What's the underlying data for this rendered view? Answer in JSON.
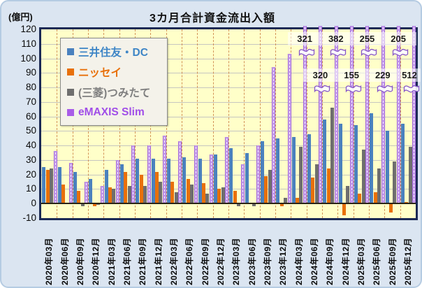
{
  "chart_data": {
    "type": "bar",
    "title": "3カ月合計資金流出入額",
    "unit_label": "(億円)",
    "ylim": [
      -10,
      120
    ],
    "ytick_step": 10,
    "grid": true,
    "legend_position": "top-left",
    "categories": [
      "2020年03月",
      "2020年06月",
      "2020年09月",
      "2020年12月",
      "2021年03月",
      "2021年06月",
      "2021年09月",
      "2021年12月",
      "2022年03月",
      "2022年06月",
      "2022年09月",
      "2022年12月",
      "2023年03月",
      "2023年06月",
      "2023年09月",
      "2023年12月",
      "2024年03月",
      "2024年06月",
      "2024年09月",
      "2024年12月",
      "2025年03月",
      "2025年06月",
      "2025年09月",
      "2025年12月"
    ],
    "series": [
      {
        "name": "三井住友・DC",
        "color": "#4a81be",
        "text_color": "#3d85c6",
        "values": [
          25,
          25,
          22,
          17,
          23,
          27,
          31,
          31,
          31,
          32,
          31,
          34,
          38,
          35,
          43,
          45,
          46,
          48,
          58,
          55,
          54,
          62,
          50,
          55
        ]
      },
      {
        "name": "ニッセイ",
        "color": "#e8700a",
        "text_color": "#e8700a",
        "values": [
          23,
          13,
          9,
          -2,
          11,
          22,
          20,
          22,
          15,
          17,
          14,
          10,
          9,
          0,
          19,
          -2,
          4,
          18,
          24,
          -8,
          7,
          8,
          -6,
          1
        ]
      },
      {
        "name": "(三菱)つみたて",
        "color": "#6e6e6e",
        "text_color": "#7f7f7f",
        "values": [
          24,
          0,
          -2,
          -1,
          10,
          12,
          12,
          15,
          8,
          13,
          7,
          11,
          -2,
          -2,
          23,
          4,
          39,
          27,
          66,
          12,
          37,
          24,
          29,
          39
        ]
      },
      {
        "name": "eMAXIS Slim",
        "color": "#a95ce8",
        "text_color": "#a04ee8",
        "values": [
          36,
          28,
          15,
          12,
          30,
          40,
          40,
          47,
          43,
          40,
          34,
          46,
          27,
          40,
          94,
          103,
          321,
          320,
          382,
          155,
          255,
          229,
          205,
          512
        ]
      }
    ],
    "annotations": [
      {
        "category": "2024年03月",
        "value": "321",
        "row": "top"
      },
      {
        "category": "2024年06月",
        "value": "320",
        "row": "bottom"
      },
      {
        "category": "2024年09月",
        "value": "382",
        "row": "top"
      },
      {
        "category": "2024年12月",
        "value": "155",
        "row": "bottom"
      },
      {
        "category": "2025年03月",
        "value": "255",
        "row": "top"
      },
      {
        "category": "2025年06月",
        "value": "229",
        "row": "bottom"
      },
      {
        "category": "2025年09月",
        "value": "205",
        "row": "top"
      },
      {
        "category": "2025年12月",
        "value": "512",
        "row": "bottom"
      }
    ],
    "colors": {
      "page_bg": "#dbe5f1",
      "plot_bg": "#ffffc9",
      "plot_border": "#1b2a55",
      "h_grid": "#c6c6c0",
      "v_grid_dashed": "#c97a3d",
      "zero_line": "#2b2416",
      "purple_fill": "#dcc0f6",
      "purple_edge": "#9c5fd6",
      "flag_fill": "#ffffff",
      "flag_stroke": "#8656c8"
    }
  }
}
